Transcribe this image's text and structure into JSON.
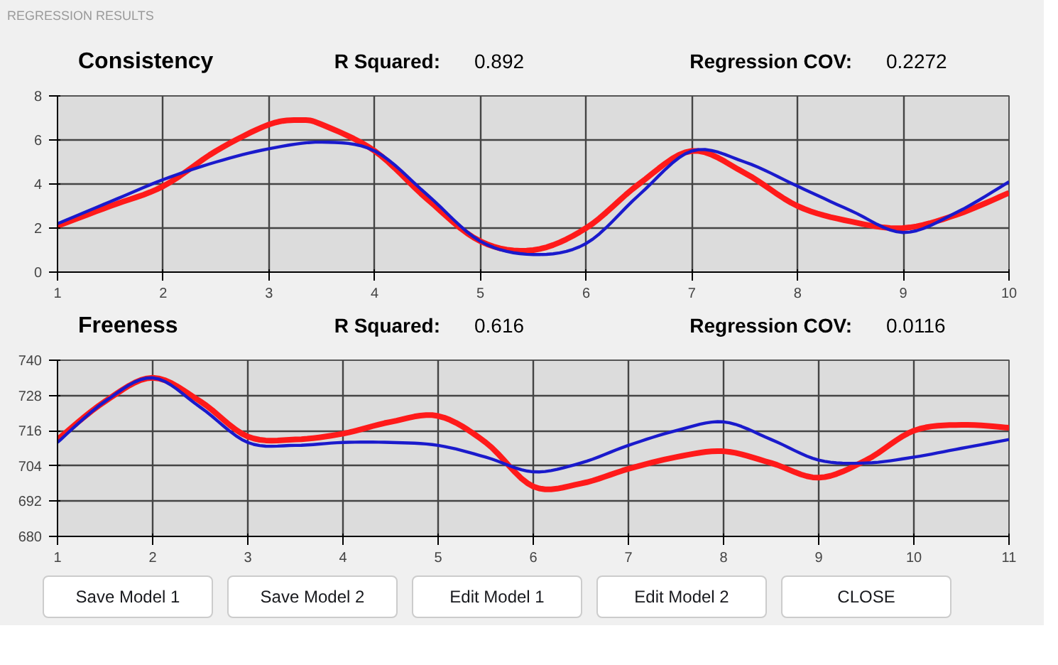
{
  "chart_data": [
    {
      "type": "line",
      "title": "Consistency",
      "annotations": [
        "REGRESSION RESULTS",
        "R Squared:",
        "0.892",
        "Regression COV:",
        "0.2272"
      ],
      "xlim": [
        1,
        10
      ],
      "xticks": [
        1,
        2,
        3,
        4,
        5,
        6,
        7,
        8,
        9,
        10
      ],
      "ylim": [
        0,
        8
      ],
      "yticks": [
        0,
        2,
        4,
        6,
        8
      ],
      "grid": true,
      "marker": "none",
      "line_style": "solid",
      "series": [
        {
          "color": "#ff1a1a",
          "x": [
            1,
            1.5,
            2,
            2.5,
            3,
            3.3,
            3.5,
            4,
            4.5,
            5,
            5.5,
            6,
            6.5,
            7,
            7.5,
            8,
            8.5,
            9,
            9.5,
            10
          ],
          "values": [
            2.1,
            3.0,
            3.9,
            5.5,
            6.7,
            6.9,
            6.7,
            5.5,
            3.3,
            1.4,
            1.0,
            2.0,
            4.0,
            5.5,
            4.5,
            3.0,
            2.3,
            2.0,
            2.6,
            3.6
          ]
        },
        {
          "color": "#1a1acc",
          "x": [
            1,
            1.5,
            2,
            2.5,
            3,
            3.5,
            4,
            4.5,
            5,
            5.5,
            6,
            6.5,
            7,
            7.5,
            8,
            8.5,
            9,
            9.5,
            10
          ],
          "values": [
            2.2,
            3.2,
            4.2,
            5.0,
            5.6,
            5.9,
            5.5,
            3.5,
            1.4,
            0.8,
            1.3,
            3.5,
            5.5,
            5.0,
            3.9,
            2.8,
            1.8,
            2.7,
            4.1
          ]
        }
      ]
    },
    {
      "type": "line",
      "title": "Freeness",
      "annotations": [
        "R Squared:",
        "0.616",
        "Regression COV:",
        "0.0116"
      ],
      "xlim": [
        1,
        11
      ],
      "xticks": [
        1,
        2,
        3,
        4,
        5,
        6,
        7,
        8,
        9,
        10,
        11
      ],
      "ylim": [
        680,
        740
      ],
      "yticks": [
        680,
        692,
        704,
        716,
        728,
        740
      ],
      "grid": true,
      "marker": "none",
      "line_style": "solid",
      "series": [
        {
          "color": "#ff1a1a",
          "x": [
            1,
            1.5,
            2,
            2.5,
            3,
            3.5,
            4,
            4.5,
            5,
            5.5,
            6,
            6.5,
            7,
            7.5,
            8,
            8.5,
            9,
            9.5,
            10,
            10.5,
            11
          ],
          "values": [
            713,
            726,
            734,
            726,
            714,
            713,
            715,
            719,
            721,
            712,
            697,
            698,
            703,
            707,
            709,
            705,
            700,
            706,
            716,
            718,
            717
          ]
        },
        {
          "color": "#1a1acc",
          "x": [
            1,
            1.5,
            2,
            2.5,
            3,
            3.5,
            4,
            4.5,
            5,
            5.5,
            6,
            6.5,
            7,
            7.5,
            8,
            8.5,
            9,
            9.5,
            10,
            10.5,
            11
          ],
          "values": [
            712,
            726,
            734,
            724,
            712,
            711,
            712,
            712,
            711,
            707,
            702,
            705,
            711,
            716,
            719,
            713,
            706,
            705,
            707,
            710,
            713
          ]
        }
      ]
    },
    {
      "type": "other",
      "annotations": [
        "Save Model 1",
        "Save Model 2",
        "Edit Model 1",
        "Edit Model 2",
        "CLOSE"
      ]
    }
  ]
}
